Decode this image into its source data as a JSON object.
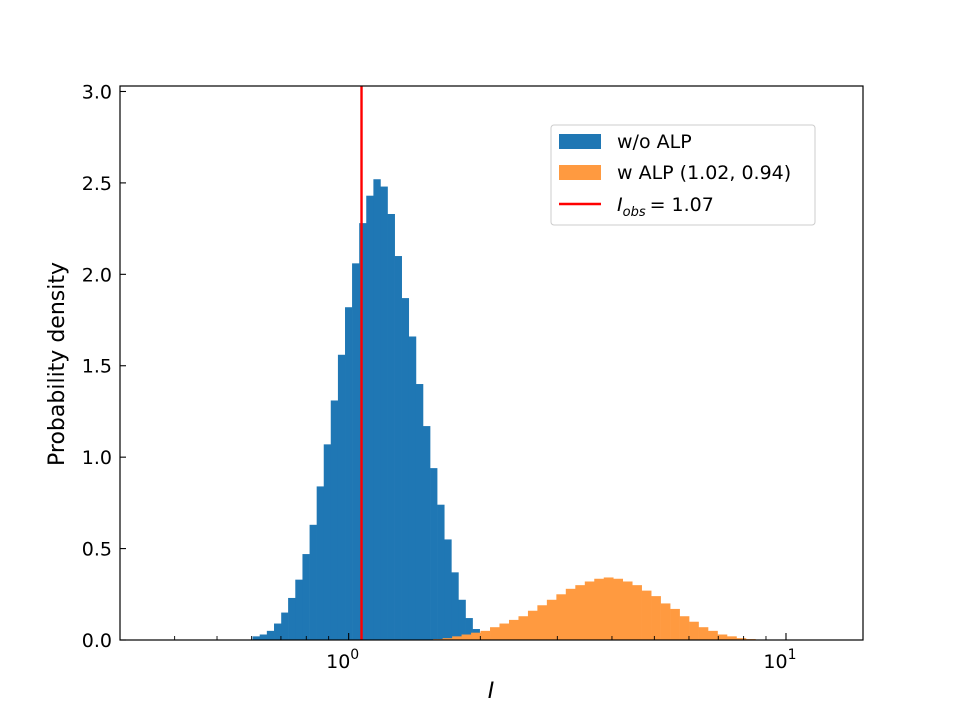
{
  "chart_data": {
    "type": "histogram",
    "xscale": "log",
    "xlim": [
      0.3,
      15
    ],
    "ylim": [
      0,
      3.03
    ],
    "xlabel": "I",
    "ylabel": "Probability density",
    "xticks": [
      {
        "value": 1,
        "base": "10",
        "exp": "0"
      },
      {
        "value": 10,
        "base": "10",
        "exp": "1"
      }
    ],
    "yticks": [
      {
        "value": 0.0,
        "label": "0.0"
      },
      {
        "value": 0.5,
        "label": "0.5"
      },
      {
        "value": 1.0,
        "label": "1.0"
      },
      {
        "value": 1.5,
        "label": "1.5"
      },
      {
        "value": 2.0,
        "label": "2.0"
      },
      {
        "value": 2.5,
        "label": "2.5"
      },
      {
        "value": 3.0,
        "label": "3.0"
      }
    ],
    "series": [
      {
        "name": "w/o ALP",
        "color": "#1f77b4",
        "bins": [
          [
            0.603,
            0.626,
            0.02
          ],
          [
            0.626,
            0.65,
            0.03
          ],
          [
            0.65,
            0.675,
            0.05
          ],
          [
            0.675,
            0.701,
            0.09
          ],
          [
            0.701,
            0.727,
            0.15
          ],
          [
            0.727,
            0.755,
            0.23
          ],
          [
            0.755,
            0.784,
            0.33
          ],
          [
            0.784,
            0.814,
            0.47
          ],
          [
            0.814,
            0.845,
            0.63
          ],
          [
            0.845,
            0.877,
            0.84
          ],
          [
            0.877,
            0.91,
            1.07
          ],
          [
            0.91,
            0.945,
            1.31
          ],
          [
            0.945,
            0.981,
            1.56
          ],
          [
            0.981,
            1.018,
            1.82
          ],
          [
            1.018,
            1.057,
            2.06
          ],
          [
            1.057,
            1.097,
            2.28
          ],
          [
            1.097,
            1.139,
            2.43
          ],
          [
            1.139,
            1.182,
            2.52
          ],
          [
            1.182,
            1.227,
            2.48
          ],
          [
            1.227,
            1.274,
            2.33
          ],
          [
            1.274,
            1.322,
            2.1
          ],
          [
            1.322,
            1.372,
            1.87
          ],
          [
            1.372,
            1.425,
            1.66
          ],
          [
            1.425,
            1.479,
            1.4
          ],
          [
            1.479,
            1.535,
            1.17
          ],
          [
            1.535,
            1.593,
            0.94
          ],
          [
            1.593,
            1.654,
            0.74
          ],
          [
            1.654,
            1.717,
            0.55
          ],
          [
            1.717,
            1.782,
            0.37
          ],
          [
            1.782,
            1.85,
            0.22
          ],
          [
            1.85,
            1.92,
            0.12
          ],
          [
            1.92,
            1.993,
            0.06
          ],
          [
            1.993,
            2.069,
            0.03
          ],
          [
            2.069,
            2.148,
            0.01
          ]
        ]
      },
      {
        "name": "w ALP (1.02, 0.94)",
        "color": "#ff9a40",
        "bins": [
          [
            1.56,
            1.64,
            0.005
          ],
          [
            1.64,
            1.724,
            0.01
          ],
          [
            1.724,
            1.812,
            0.02
          ],
          [
            1.812,
            1.905,
            0.03
          ],
          [
            1.905,
            2.002,
            0.04
          ],
          [
            2.002,
            2.105,
            0.05
          ],
          [
            2.105,
            2.212,
            0.07
          ],
          [
            2.212,
            2.326,
            0.09
          ],
          [
            2.326,
            2.445,
            0.11
          ],
          [
            2.445,
            2.57,
            0.13
          ],
          [
            2.57,
            2.701,
            0.16
          ],
          [
            2.701,
            2.839,
            0.19
          ],
          [
            2.839,
            2.985,
            0.22
          ],
          [
            2.985,
            3.137,
            0.25
          ],
          [
            3.137,
            3.298,
            0.28
          ],
          [
            3.298,
            3.467,
            0.3
          ],
          [
            3.467,
            3.644,
            0.32
          ],
          [
            3.644,
            3.831,
            0.335
          ],
          [
            3.831,
            4.027,
            0.342
          ],
          [
            4.027,
            4.233,
            0.335
          ],
          [
            4.233,
            4.45,
            0.32
          ],
          [
            4.45,
            4.677,
            0.3
          ],
          [
            4.677,
            4.917,
            0.27
          ],
          [
            4.917,
            5.168,
            0.24
          ],
          [
            5.168,
            5.433,
            0.2
          ],
          [
            5.433,
            5.711,
            0.17
          ],
          [
            5.711,
            6.003,
            0.13
          ],
          [
            6.003,
            6.31,
            0.1
          ],
          [
            6.31,
            6.633,
            0.07
          ],
          [
            6.633,
            6.973,
            0.05
          ],
          [
            6.973,
            7.33,
            0.03
          ],
          [
            7.33,
            7.705,
            0.02
          ],
          [
            7.705,
            8.099,
            0.01
          ],
          [
            8.099,
            8.514,
            0.005
          ]
        ]
      }
    ],
    "vline": {
      "x": 1.07,
      "color": "#ff0000",
      "label_var": "I",
      "label_sub": "obs",
      "label_rest": "= 1.07"
    },
    "legend": {
      "location": "upper right"
    }
  }
}
